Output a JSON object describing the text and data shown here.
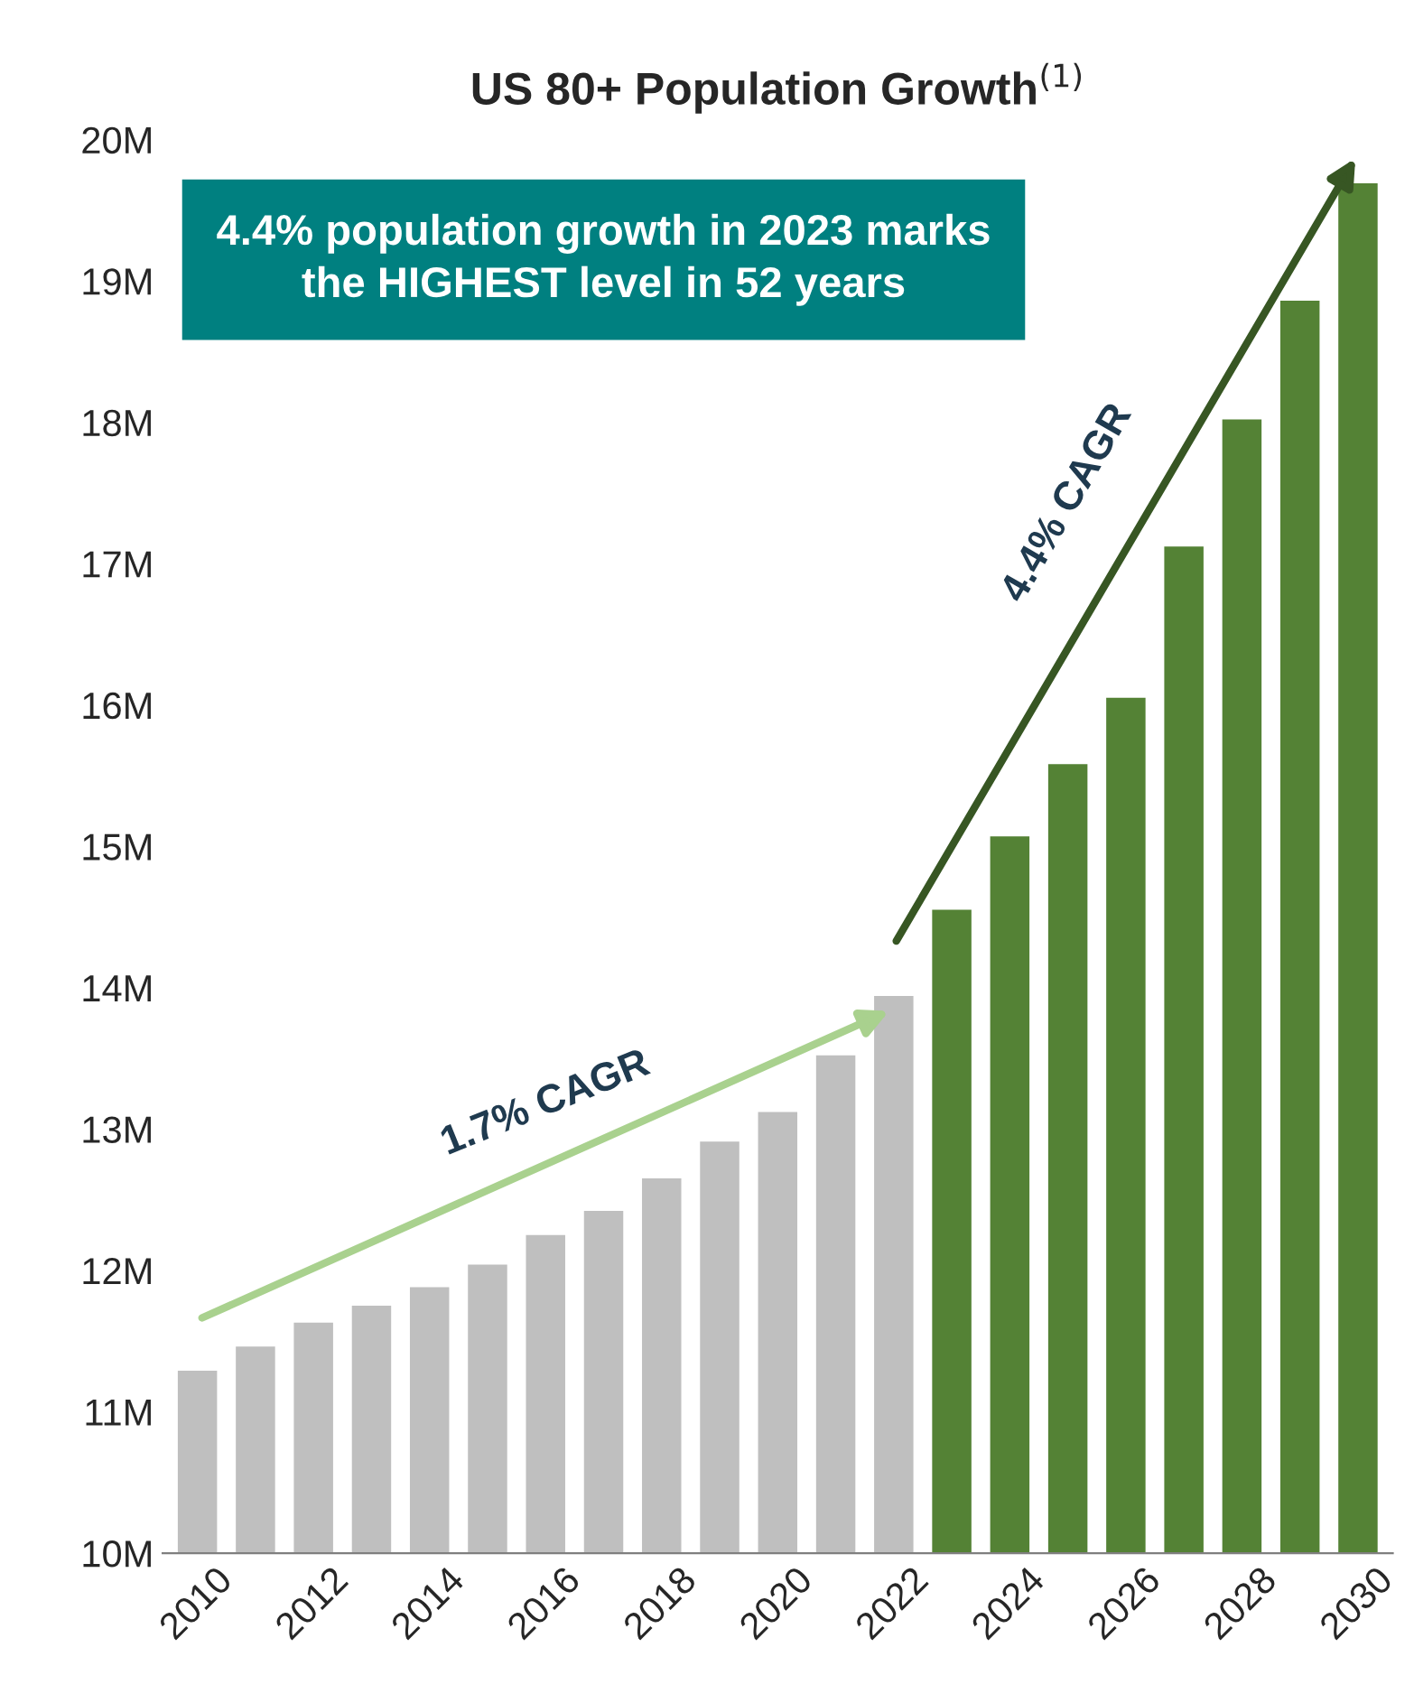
{
  "chart_data": {
    "type": "bar",
    "title": "US 80+ Population Growth$^{(1)}$",
    "categories": [
      "2010",
      null,
      "2012",
      null,
      "2014",
      null,
      "2016",
      null,
      "2018",
      null,
      "2020",
      null,
      "2022",
      null,
      "2024",
      null,
      "2026",
      null,
      "2028",
      null,
      "2030"
    ],
    "values": [
      11.3,
      11.47,
      11.64,
      11.76,
      11.89,
      12.05,
      12.26,
      12.43,
      12.66,
      12.92,
      13.13,
      13.53,
      13.95,
      14.56,
      15.08,
      15.59,
      16.06,
      17.13,
      18.03,
      18.87,
      19.7
    ],
    "colors": [
      "#bfbfbf",
      "#bfbfbf",
      "#bfbfbf",
      "#bfbfbf",
      "#bfbfbf",
      "#bfbfbf",
      "#bfbfbf",
      "#bfbfbf",
      "#bfbfbf",
      "#bfbfbf",
      "#bfbfbf",
      "#bfbfbf",
      "#bfbfbf",
      "#548235",
      "#548235",
      "#548235",
      "#548235",
      "#548235",
      "#548235",
      "#548235",
      "#548235"
    ],
    "ylim": [
      10,
      20
    ],
    "yticks": [
      {
        "value": 10,
        "label": "10M"
      },
      {
        "value": 11,
        "label": "11M"
      },
      {
        "value": 12,
        "label": "12M"
      },
      {
        "value": 13,
        "label": "13M"
      },
      {
        "value": 14,
        "label": "14M"
      },
      {
        "value": 15,
        "label": "15M"
      },
      {
        "value": 16,
        "label": "16M"
      },
      {
        "value": 17,
        "label": "17M"
      },
      {
        "value": 18,
        "label": "18M"
      },
      {
        "value": 19,
        "label": "19M"
      },
      {
        "value": 20,
        "label": "20M"
      }
    ],
    "grid": false,
    "legend": false,
    "annotations": [
      "4.4% population growth in 2023 marks\nthe HIGHEST level in 52 years",
      "1.7% CAGR",
      "4.4% CAGR"
    ]
  }
}
